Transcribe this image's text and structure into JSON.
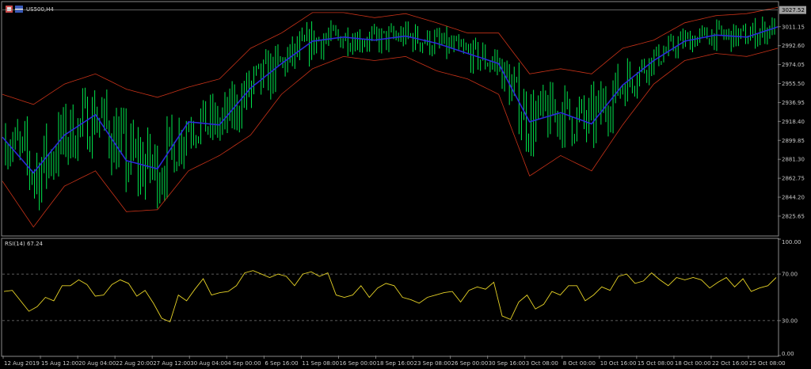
{
  "symbol": "US500,H4",
  "indicator_label": "RSI(14) 67.24",
  "chart_data": [
    {
      "type": "candlestick",
      "title": "US500,H4",
      "last_price": "3027.52",
      "ylim": [
        2807,
        3035
      ],
      "yticks": [
        "3011.15",
        "2992.60",
        "2974.05",
        "2955.50",
        "2936.95",
        "2918.40",
        "2899.85",
        "2881.30",
        "2862.75",
        "2844.20",
        "2825.65"
      ],
      "xticks": [
        "12 Aug 2019",
        "15 Aug 12:00",
        "20 Aug 04:00",
        "22 Aug 20:00",
        "27 Aug 12:00",
        "30 Aug 04:00",
        "4 Sep 00:00",
        "6 Sep 16:00",
        "11 Sep 08:00",
        "16 Sep 00:00",
        "18 Sep 16:00",
        "23 Sep 08:00",
        "26 Sep 00:00",
        "30 Sep 16:00",
        "3 Oct 08:00",
        "8 Oct 00:00",
        "10 Oct 16:00",
        "15 Oct 08:00",
        "18 Oct 00:00",
        "22 Oct 16:00",
        "25 Oct 08:00"
      ],
      "series": [
        {
          "type": "line",
          "x": [
            0,
            4,
            8,
            12,
            16,
            20,
            24,
            28,
            32,
            36,
            40,
            44,
            48,
            52,
            56,
            60,
            64,
            68,
            72,
            76,
            80,
            84,
            88,
            92,
            96,
            100
          ],
          "values": [
            2903,
            2868,
            2905,
            2925,
            2880,
            2872,
            2918,
            2915,
            2951,
            2975,
            2997,
            3001,
            2998,
            3002,
            2995,
            2985,
            2975,
            2918,
            2927,
            2916,
            2954,
            2978,
            2997,
            3003,
            3001,
            3011
          ]
        },
        {
          "type": "line",
          "x": [
            0,
            4,
            8,
            12,
            16,
            20,
            24,
            28,
            32,
            36,
            40,
            44,
            48,
            52,
            56,
            60,
            64,
            68,
            72,
            76,
            80,
            84,
            88,
            92,
            96,
            100
          ],
          "values": [
            2945,
            2935,
            2955,
            2965,
            2950,
            2942,
            2952,
            2960,
            2990,
            3005,
            3025,
            3025,
            3020,
            3024,
            3015,
            3005,
            3005,
            2965,
            2970,
            2965,
            2990,
            2998,
            3015,
            3022,
            3024,
            3030
          ]
        },
        {
          "type": "line",
          "x": [
            0,
            4,
            8,
            12,
            16,
            20,
            24,
            28,
            32,
            36,
            40,
            44,
            48,
            52,
            56,
            60,
            64,
            68,
            72,
            76,
            80,
            84,
            88,
            92,
            96,
            100
          ],
          "values": [
            2860,
            2815,
            2855,
            2870,
            2830,
            2832,
            2870,
            2885,
            2905,
            2945,
            2970,
            2982,
            2978,
            2982,
            2968,
            2960,
            2945,
            2865,
            2885,
            2870,
            2915,
            2955,
            2978,
            2985,
            2982,
            2990
          ]
        }
      ]
    },
    {
      "type": "line",
      "title": "RSI(14) 67.24",
      "ylim": [
        0,
        100
      ],
      "yticks": [
        "100.00",
        "70.00",
        "30.00",
        "0.00"
      ],
      "levels": [
        70,
        30
      ],
      "series": [
        {
          "values": [
            55,
            56,
            47,
            38,
            42,
            50,
            47,
            60,
            60,
            65,
            61,
            51,
            52,
            61,
            65,
            62,
            51,
            56,
            45,
            32,
            29,
            52,
            47,
            57,
            66,
            52,
            54,
            55,
            60,
            71,
            73,
            70,
            67,
            70,
            68,
            60,
            70,
            72,
            68,
            71,
            52,
            50,
            52,
            60,
            50,
            58,
            62,
            60,
            50,
            48,
            45,
            50,
            52,
            54,
            55,
            46,
            56,
            59,
            57,
            63,
            34,
            31,
            46,
            52,
            40,
            44,
            55,
            52,
            60,
            60,
            47,
            52,
            59,
            56,
            68,
            70,
            62,
            64,
            71,
            65,
            60,
            67,
            65,
            67,
            65,
            58,
            63,
            67,
            59,
            66,
            55,
            58,
            60,
            67
          ]
        }
      ]
    }
  ],
  "colors": {
    "background": "#000000",
    "candle": "#00e64d",
    "ma": "#2a2ad8",
    "bands": "#c83218",
    "rsi": "#e6d226",
    "grid": "#7a7a7a",
    "axis_text": "#c8c8c8",
    "price_tag": "#a0a0a0"
  }
}
